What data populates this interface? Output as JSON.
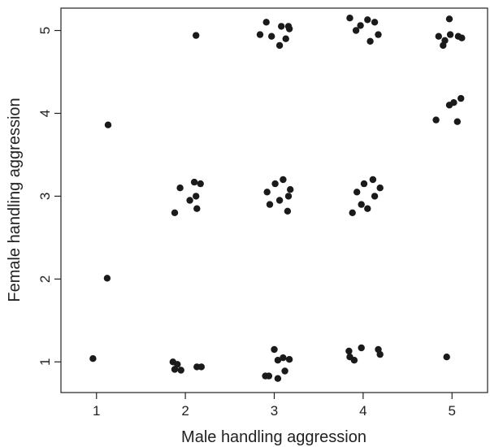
{
  "chart_data": {
    "type": "scatter",
    "title": "",
    "xlabel": "Male handling aggression",
    "ylabel": "Female handling aggression",
    "xlim": [
      0.6,
      5.4
    ],
    "ylim": [
      0.63,
      5.27
    ],
    "xticks": [
      "1",
      "2",
      "3",
      "4",
      "5"
    ],
    "yticks": [
      "1",
      "2",
      "3",
      "4",
      "5"
    ],
    "grid": false,
    "legend": "none",
    "marker_color": "#1a1a1a",
    "series": [
      {
        "x": [
          0.96,
          1.12,
          1.13,
          1.86,
          1.88,
          1.91,
          1.95,
          2.13,
          2.18,
          2.9,
          2.94,
          3,
          3.04,
          3.04,
          3.1,
          3.12,
          3.17,
          3.84,
          3.85,
          3.9,
          3.98,
          4.17,
          4.19,
          4.94,
          1.88,
          1.94,
          2.05,
          2.1,
          2.12,
          2.13,
          2.17,
          2.92,
          2.95,
          3.01,
          3.06,
          3.1,
          3.15,
          3.16,
          3.18,
          3.88,
          3.93,
          3.98,
          4.01,
          4.05,
          4.11,
          4.13,
          4.19,
          4.82,
          4.97,
          5.02,
          5.06,
          5.1,
          2.12,
          2.84,
          2.91,
          2.97,
          3.06,
          3.08,
          3.13,
          3.16,
          3.17,
          3.85,
          3.92,
          3.97,
          4.05,
          4.08,
          4.13,
          4.17,
          4.85,
          4.9,
          4.92,
          4.97,
          4.98,
          5.07,
          5.11
        ],
        "y": [
          1.04,
          2.01,
          3.86,
          1.0,
          0.91,
          0.97,
          0.9,
          0.94,
          0.94,
          0.83,
          0.83,
          1.15,
          0.8,
          1.02,
          1.05,
          0.89,
          1.03,
          1.13,
          1.06,
          1.02,
          1.17,
          1.15,
          1.09,
          1.06,
          2.8,
          3.1,
          2.95,
          3.17,
          3.0,
          2.85,
          3.15,
          3.05,
          2.9,
          3.15,
          2.95,
          3.2,
          2.82,
          3.0,
          3.08,
          2.8,
          3.05,
          2.9,
          3.15,
          2.85,
          3.2,
          3.0,
          3.1,
          3.92,
          4.1,
          4.13,
          3.9,
          4.18,
          4.94,
          4.95,
          5.1,
          4.93,
          4.82,
          5.05,
          4.9,
          5.05,
          5.02,
          5.15,
          5.0,
          5.06,
          5.13,
          4.87,
          5.1,
          4.95,
          4.93,
          4.82,
          4.88,
          5.14,
          4.95,
          4.93,
          4.91
        ]
      }
    ]
  }
}
